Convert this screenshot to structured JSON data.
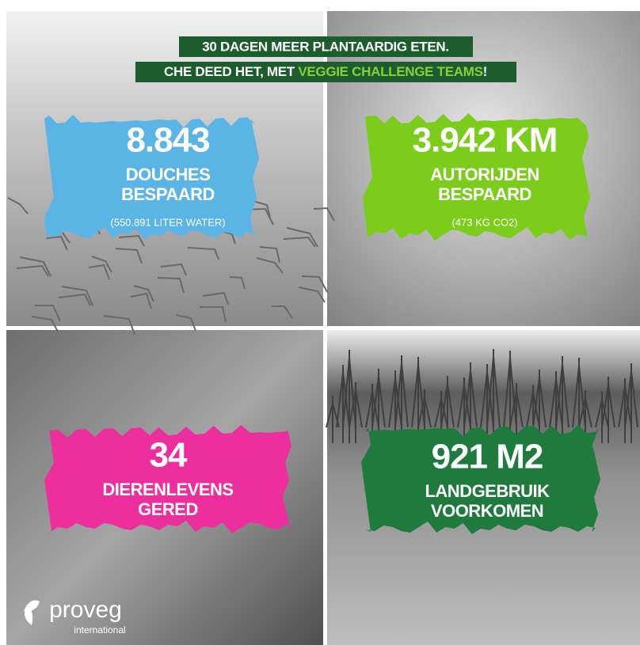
{
  "header": {
    "line1": "30 DAGEN MEER PLANTAARDIG ETEN.",
    "line2_prefix": "CHE DEED HET, MET ",
    "line2_highlight": "VEGGIE CHALLENGE TEAMS",
    "line2_suffix": "!"
  },
  "panels": [
    {
      "stat": "8.843",
      "label_lines": [
        "DOUCHES",
        "BESPAARD"
      ],
      "note": "(550.891 LITER WATER)"
    },
    {
      "stat": "3.942 KM",
      "label_lines": [
        "AUTORIJDEN",
        "BESPAARD"
      ],
      "note": "(473 KG CO2)"
    },
    {
      "stat": "34",
      "label_lines": [
        "DIERENLEVENS",
        "GERED"
      ]
    },
    {
      "stat": "921 M2",
      "label_lines": [
        "LANDGEBRUIK",
        "VOORKOMEN"
      ]
    }
  ],
  "logo": {
    "brand": "proveg",
    "subtitle": "international"
  }
}
